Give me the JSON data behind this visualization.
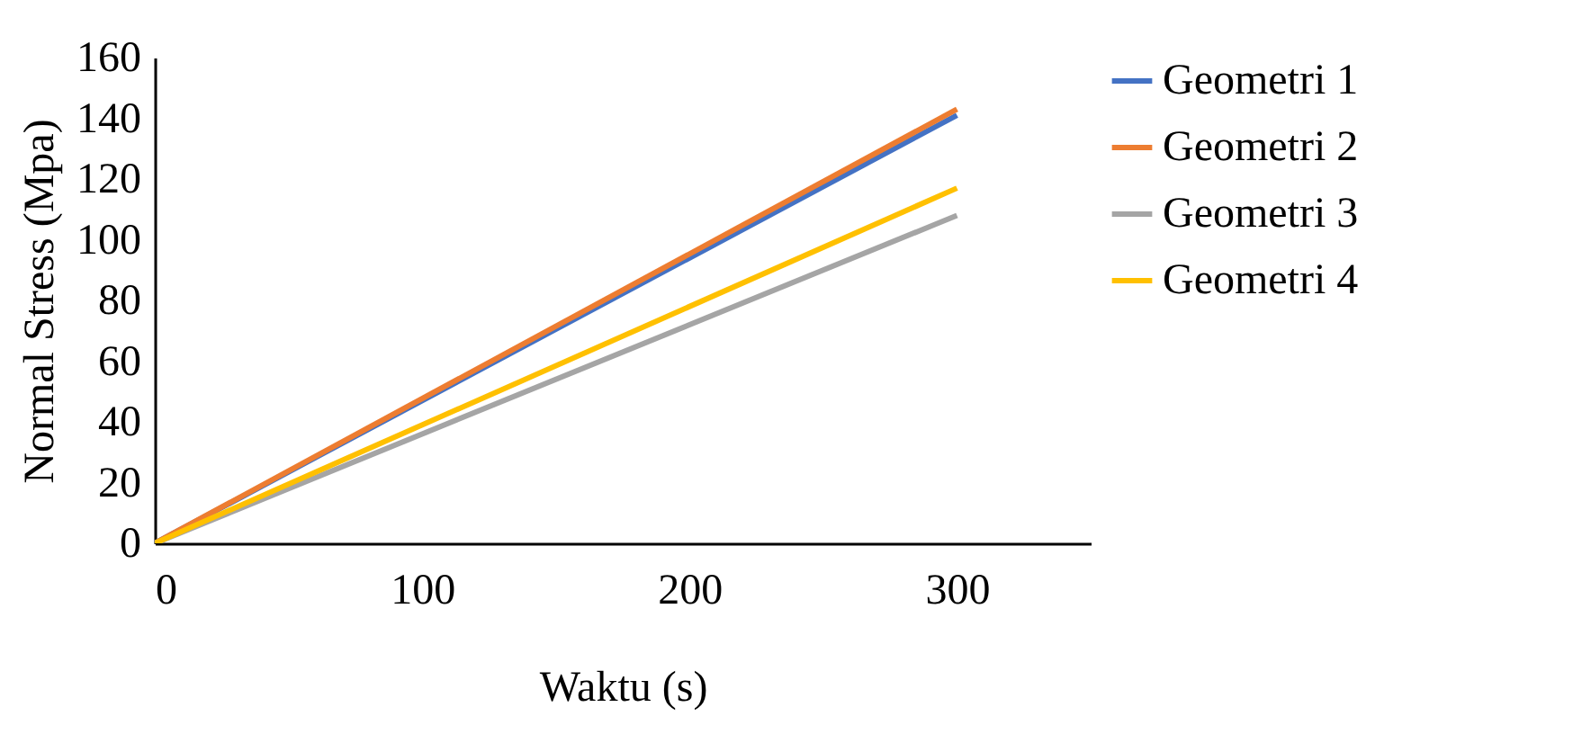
{
  "chart_data": {
    "type": "line",
    "xlabel": "Waktu (s)",
    "ylabel": "Normal Stress (Mpa)",
    "x": [
      0,
      300
    ],
    "series": [
      {
        "name": "Geometri 1",
        "color": "#4472c4",
        "values": [
          0,
          141
        ]
      },
      {
        "name": "Geometri 2",
        "color": "#ed7d31",
        "values": [
          0,
          143
        ]
      },
      {
        "name": "Geometri 3",
        "color": "#a5a5a5",
        "values": [
          0,
          108
        ]
      },
      {
        "name": "Geometri 4",
        "color": "#ffc000",
        "values": [
          0,
          117
        ]
      }
    ],
    "xlim": [
      0,
      350
    ],
    "xticks": [
      0,
      100,
      200,
      300
    ],
    "ylim": [
      0,
      160
    ],
    "yticks": [
      0,
      20,
      40,
      60,
      80,
      100,
      120,
      140,
      160
    ],
    "grid": false,
    "legend": "right",
    "marker": "none",
    "line_style": "solid"
  }
}
